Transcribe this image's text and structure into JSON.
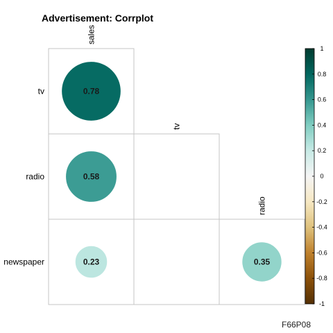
{
  "chart_data": {
    "type": "heatmap",
    "title": "Advertisement: Corrplot",
    "variables": [
      "sales",
      "tv",
      "radio",
      "newspaper"
    ],
    "column_labels": [
      "sales",
      "tv",
      "radio"
    ],
    "row_labels": [
      "tv",
      "radio",
      "newspaper"
    ],
    "cells": [
      {
        "row": "tv",
        "col": "sales",
        "value": 0.78,
        "label": "0.78"
      },
      {
        "row": "radio",
        "col": "sales",
        "value": 0.58,
        "label": "0.58"
      },
      {
        "row": "radio",
        "col": "tv",
        "value": null,
        "label": ""
      },
      {
        "row": "newspaper",
        "col": "sales",
        "value": 0.23,
        "label": "0.23"
      },
      {
        "row": "newspaper",
        "col": "tv",
        "value": null,
        "label": ""
      },
      {
        "row": "newspaper",
        "col": "radio",
        "value": 0.35,
        "label": "0.35"
      }
    ],
    "colorbar": {
      "range": [
        -1,
        1
      ],
      "ticks": [
        "1",
        "0.8",
        "0.6",
        "0.4",
        "0.2",
        "0",
        "-0.2",
        "-0.4",
        "-0.6",
        "-0.8",
        "-1"
      ],
      "tick_values": [
        1,
        0.8,
        0.6,
        0.4,
        0.2,
        0,
        -0.2,
        -0.4,
        -0.6,
        -0.8,
        -1
      ],
      "colors": [
        "#543005",
        "#8c510a",
        "#bf812d",
        "#dfc27d",
        "#f6e8c3",
        "#f5f5f5",
        "#c7eae5",
        "#80cdc1",
        "#35978f",
        "#01665e",
        "#003c30"
      ]
    },
    "layout": "lower-triangle",
    "grid": true
  },
  "footer": {
    "id_label": "F66P08"
  }
}
